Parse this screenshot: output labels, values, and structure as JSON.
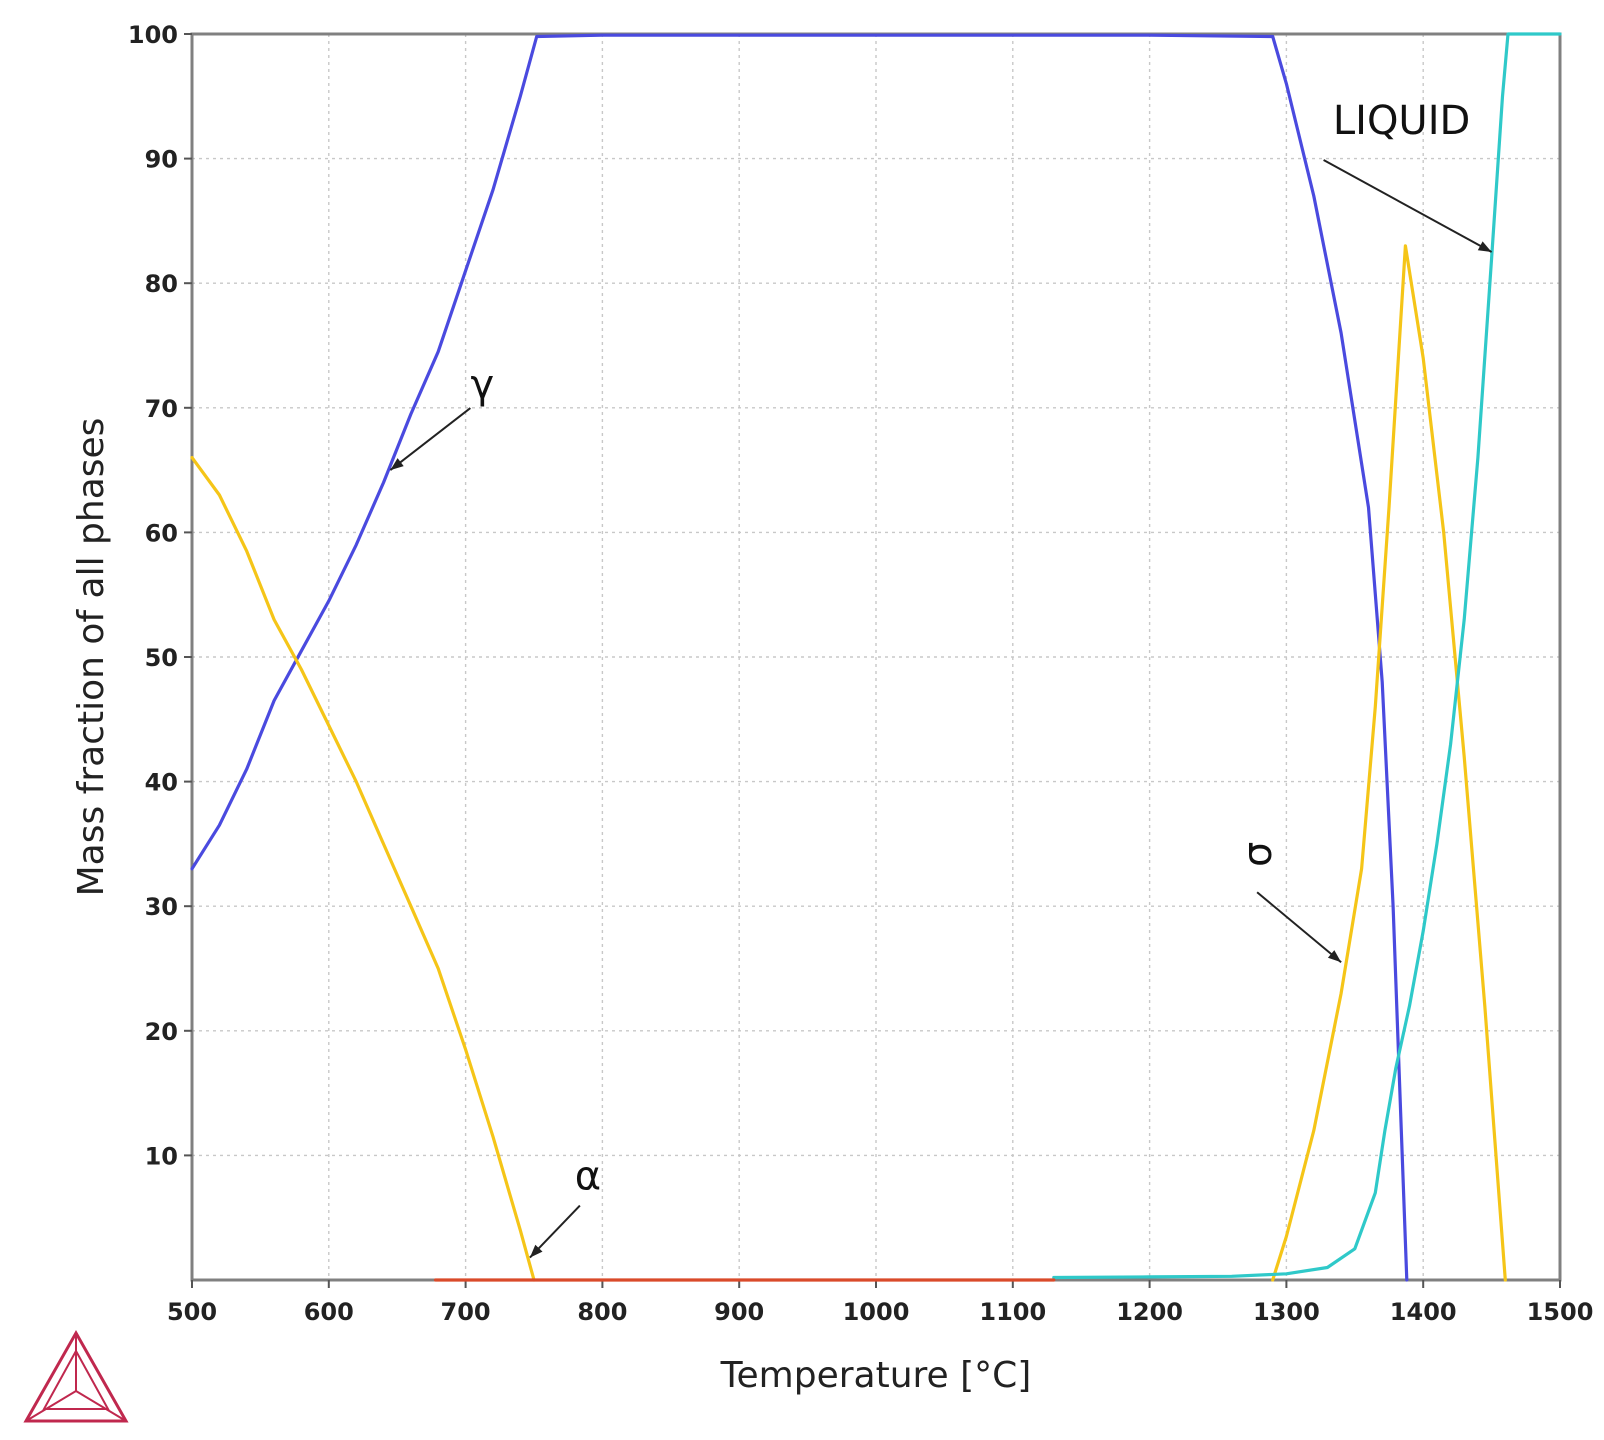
{
  "chart_data": {
    "type": "line",
    "xlabel": "Temperature [°C]",
    "ylabel": "Mass fraction of all phases",
    "xlim": [
      500,
      1500
    ],
    "ylim": [
      0,
      100
    ],
    "xticks": [
      "500",
      "600",
      "700",
      "800",
      "900",
      "1000",
      "1100",
      "1200",
      "1300",
      "1400",
      "1500"
    ],
    "yticks": [
      "10",
      "20",
      "30",
      "40",
      "50",
      "60",
      "70",
      "80",
      "90",
      "100"
    ],
    "grid": true,
    "series": [
      {
        "id": "gamma",
        "name": "γ",
        "color": "#4a4adf",
        "points": [
          [
            500,
            33
          ],
          [
            520,
            36.5
          ],
          [
            540,
            41
          ],
          [
            560,
            46.5
          ],
          [
            580,
            50.5
          ],
          [
            600,
            54.5
          ],
          [
            620,
            59
          ],
          [
            640,
            64
          ],
          [
            660,
            69.5
          ],
          [
            680,
            74.5
          ],
          [
            700,
            81
          ],
          [
            720,
            87.5
          ],
          [
            740,
            95
          ],
          [
            752,
            99.8
          ],
          [
            800,
            99.9
          ],
          [
            1000,
            99.9
          ],
          [
            1100,
            99.9
          ],
          [
            1200,
            99.9
          ],
          [
            1290,
            99.8
          ],
          [
            1300,
            96
          ],
          [
            1320,
            87
          ],
          [
            1340,
            76
          ],
          [
            1360,
            62
          ],
          [
            1370,
            48
          ],
          [
            1378,
            30
          ],
          [
            1384,
            12
          ],
          [
            1388,
            0
          ]
        ]
      },
      {
        "id": "alpha",
        "name": "α",
        "color": "#f5c518",
        "points": [
          [
            500,
            66
          ],
          [
            520,
            63
          ],
          [
            540,
            58.5
          ],
          [
            560,
            53
          ],
          [
            580,
            49
          ],
          [
            600,
            44.5
          ],
          [
            620,
            40
          ],
          [
            640,
            35
          ],
          [
            660,
            30
          ],
          [
            680,
            25
          ],
          [
            700,
            18.5
          ],
          [
            720,
            11.5
          ],
          [
            740,
            4
          ],
          [
            750,
            0
          ]
        ]
      },
      {
        "id": "sigma",
        "name": "σ",
        "color": "#f5c518",
        "points": [
          [
            1290,
            0
          ],
          [
            1300,
            3.5
          ],
          [
            1320,
            12
          ],
          [
            1340,
            23
          ],
          [
            1355,
            33
          ],
          [
            1365,
            46
          ],
          [
            1375,
            62
          ],
          [
            1387,
            83
          ],
          [
            1400,
            74
          ],
          [
            1415,
            60
          ],
          [
            1430,
            42
          ],
          [
            1445,
            22
          ],
          [
            1460,
            0
          ]
        ]
      },
      {
        "id": "liquid",
        "name": "LIQUID",
        "color": "#2fc9c9",
        "points": [
          [
            1130,
            0.2
          ],
          [
            1200,
            0.25
          ],
          [
            1260,
            0.3
          ],
          [
            1300,
            0.5
          ],
          [
            1330,
            1
          ],
          [
            1350,
            2.5
          ],
          [
            1365,
            7
          ],
          [
            1372,
            12
          ],
          [
            1380,
            17
          ],
          [
            1390,
            22
          ],
          [
            1400,
            28
          ],
          [
            1410,
            35
          ],
          [
            1420,
            43
          ],
          [
            1430,
            53
          ],
          [
            1440,
            66
          ],
          [
            1450,
            82
          ],
          [
            1458,
            95
          ],
          [
            1462,
            100
          ],
          [
            1500,
            100
          ]
        ]
      },
      {
        "id": "baseline",
        "name": "",
        "color": "#d94a2a",
        "points": [
          [
            678,
            0
          ],
          [
            1130,
            0
          ]
        ]
      }
    ],
    "annotations": [
      {
        "id": "gamma",
        "text": "γ",
        "target": [
          645,
          65
        ]
      },
      {
        "id": "alpha",
        "text": "α",
        "target": [
          747,
          1.8
        ]
      },
      {
        "id": "sigma",
        "text": "σ",
        "target": [
          1340,
          25.5
        ]
      },
      {
        "id": "liquid",
        "text": "LIQUID",
        "target": [
          1450,
          82.5
        ]
      }
    ]
  }
}
